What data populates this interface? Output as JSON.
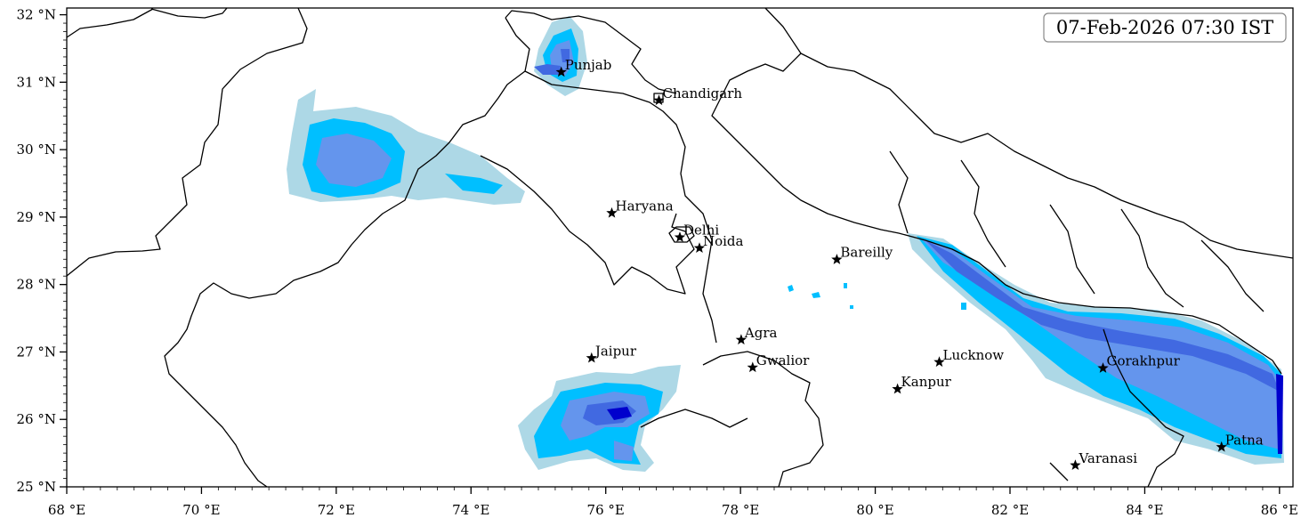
{
  "timestamp": "07-Feb-2026 07:30 IST",
  "x_ticks": [
    {
      "lon": 68,
      "label": "68 °E"
    },
    {
      "lon": 70,
      "label": "70 °E"
    },
    {
      "lon": 72,
      "label": "72 °E"
    },
    {
      "lon": 74,
      "label": "74 °E"
    },
    {
      "lon": 76,
      "label": "76 °E"
    },
    {
      "lon": 78,
      "label": "78 °E"
    },
    {
      "lon": 80,
      "label": "80 °E"
    },
    {
      "lon": 82,
      "label": "82 °E"
    },
    {
      "lon": 84,
      "label": "84 °E"
    },
    {
      "lon": 86,
      "label": "86 °E"
    }
  ],
  "y_ticks": [
    {
      "lat": 32,
      "label": "32 °N"
    },
    {
      "lat": 31,
      "label": "31 °N"
    },
    {
      "lat": 30,
      "label": "30 °N"
    },
    {
      "lat": 29,
      "label": "29 °N"
    },
    {
      "lat": 28,
      "label": "28 °N"
    },
    {
      "lat": 27,
      "label": "27 °N"
    },
    {
      "lat": 26,
      "label": "26 °N"
    },
    {
      "lat": 25,
      "label": "25 °N"
    }
  ],
  "extent": {
    "lon_min": 68,
    "lon_max": 86.2,
    "lat_min": 25,
    "lat_max": 32.1
  },
  "fill_colors": [
    "#add8e6",
    "#00bfff",
    "#6495ed",
    "#4169e1",
    "#0000cd"
  ],
  "cities": [
    {
      "name": "Punjab",
      "lon": 75.34,
      "lat": 31.15
    },
    {
      "name": "Chandigarh",
      "lon": 76.79,
      "lat": 30.73
    },
    {
      "name": "Haryana",
      "lon": 76.09,
      "lat": 29.06
    },
    {
      "name": "Delhi",
      "lon": 77.1,
      "lat": 28.7
    },
    {
      "name": "Noida",
      "lon": 77.39,
      "lat": 28.54
    },
    {
      "name": "Bareilly",
      "lon": 79.43,
      "lat": 28.37
    },
    {
      "name": "Agra",
      "lon": 78.01,
      "lat": 27.18
    },
    {
      "name": "Jaipur",
      "lon": 75.79,
      "lat": 26.91
    },
    {
      "name": "Gwalior",
      "lon": 78.18,
      "lat": 26.77
    },
    {
      "name": "Lucknow",
      "lon": 80.95,
      "lat": 26.85
    },
    {
      "name": "Kanpur",
      "lon": 80.33,
      "lat": 26.45
    },
    {
      "name": "Gorakhpur",
      "lon": 83.38,
      "lat": 26.76
    },
    {
      "name": "Varanasi",
      "lon": 82.97,
      "lat": 25.32
    },
    {
      "name": "Patna",
      "lon": 85.14,
      "lat": 25.59
    }
  ]
}
